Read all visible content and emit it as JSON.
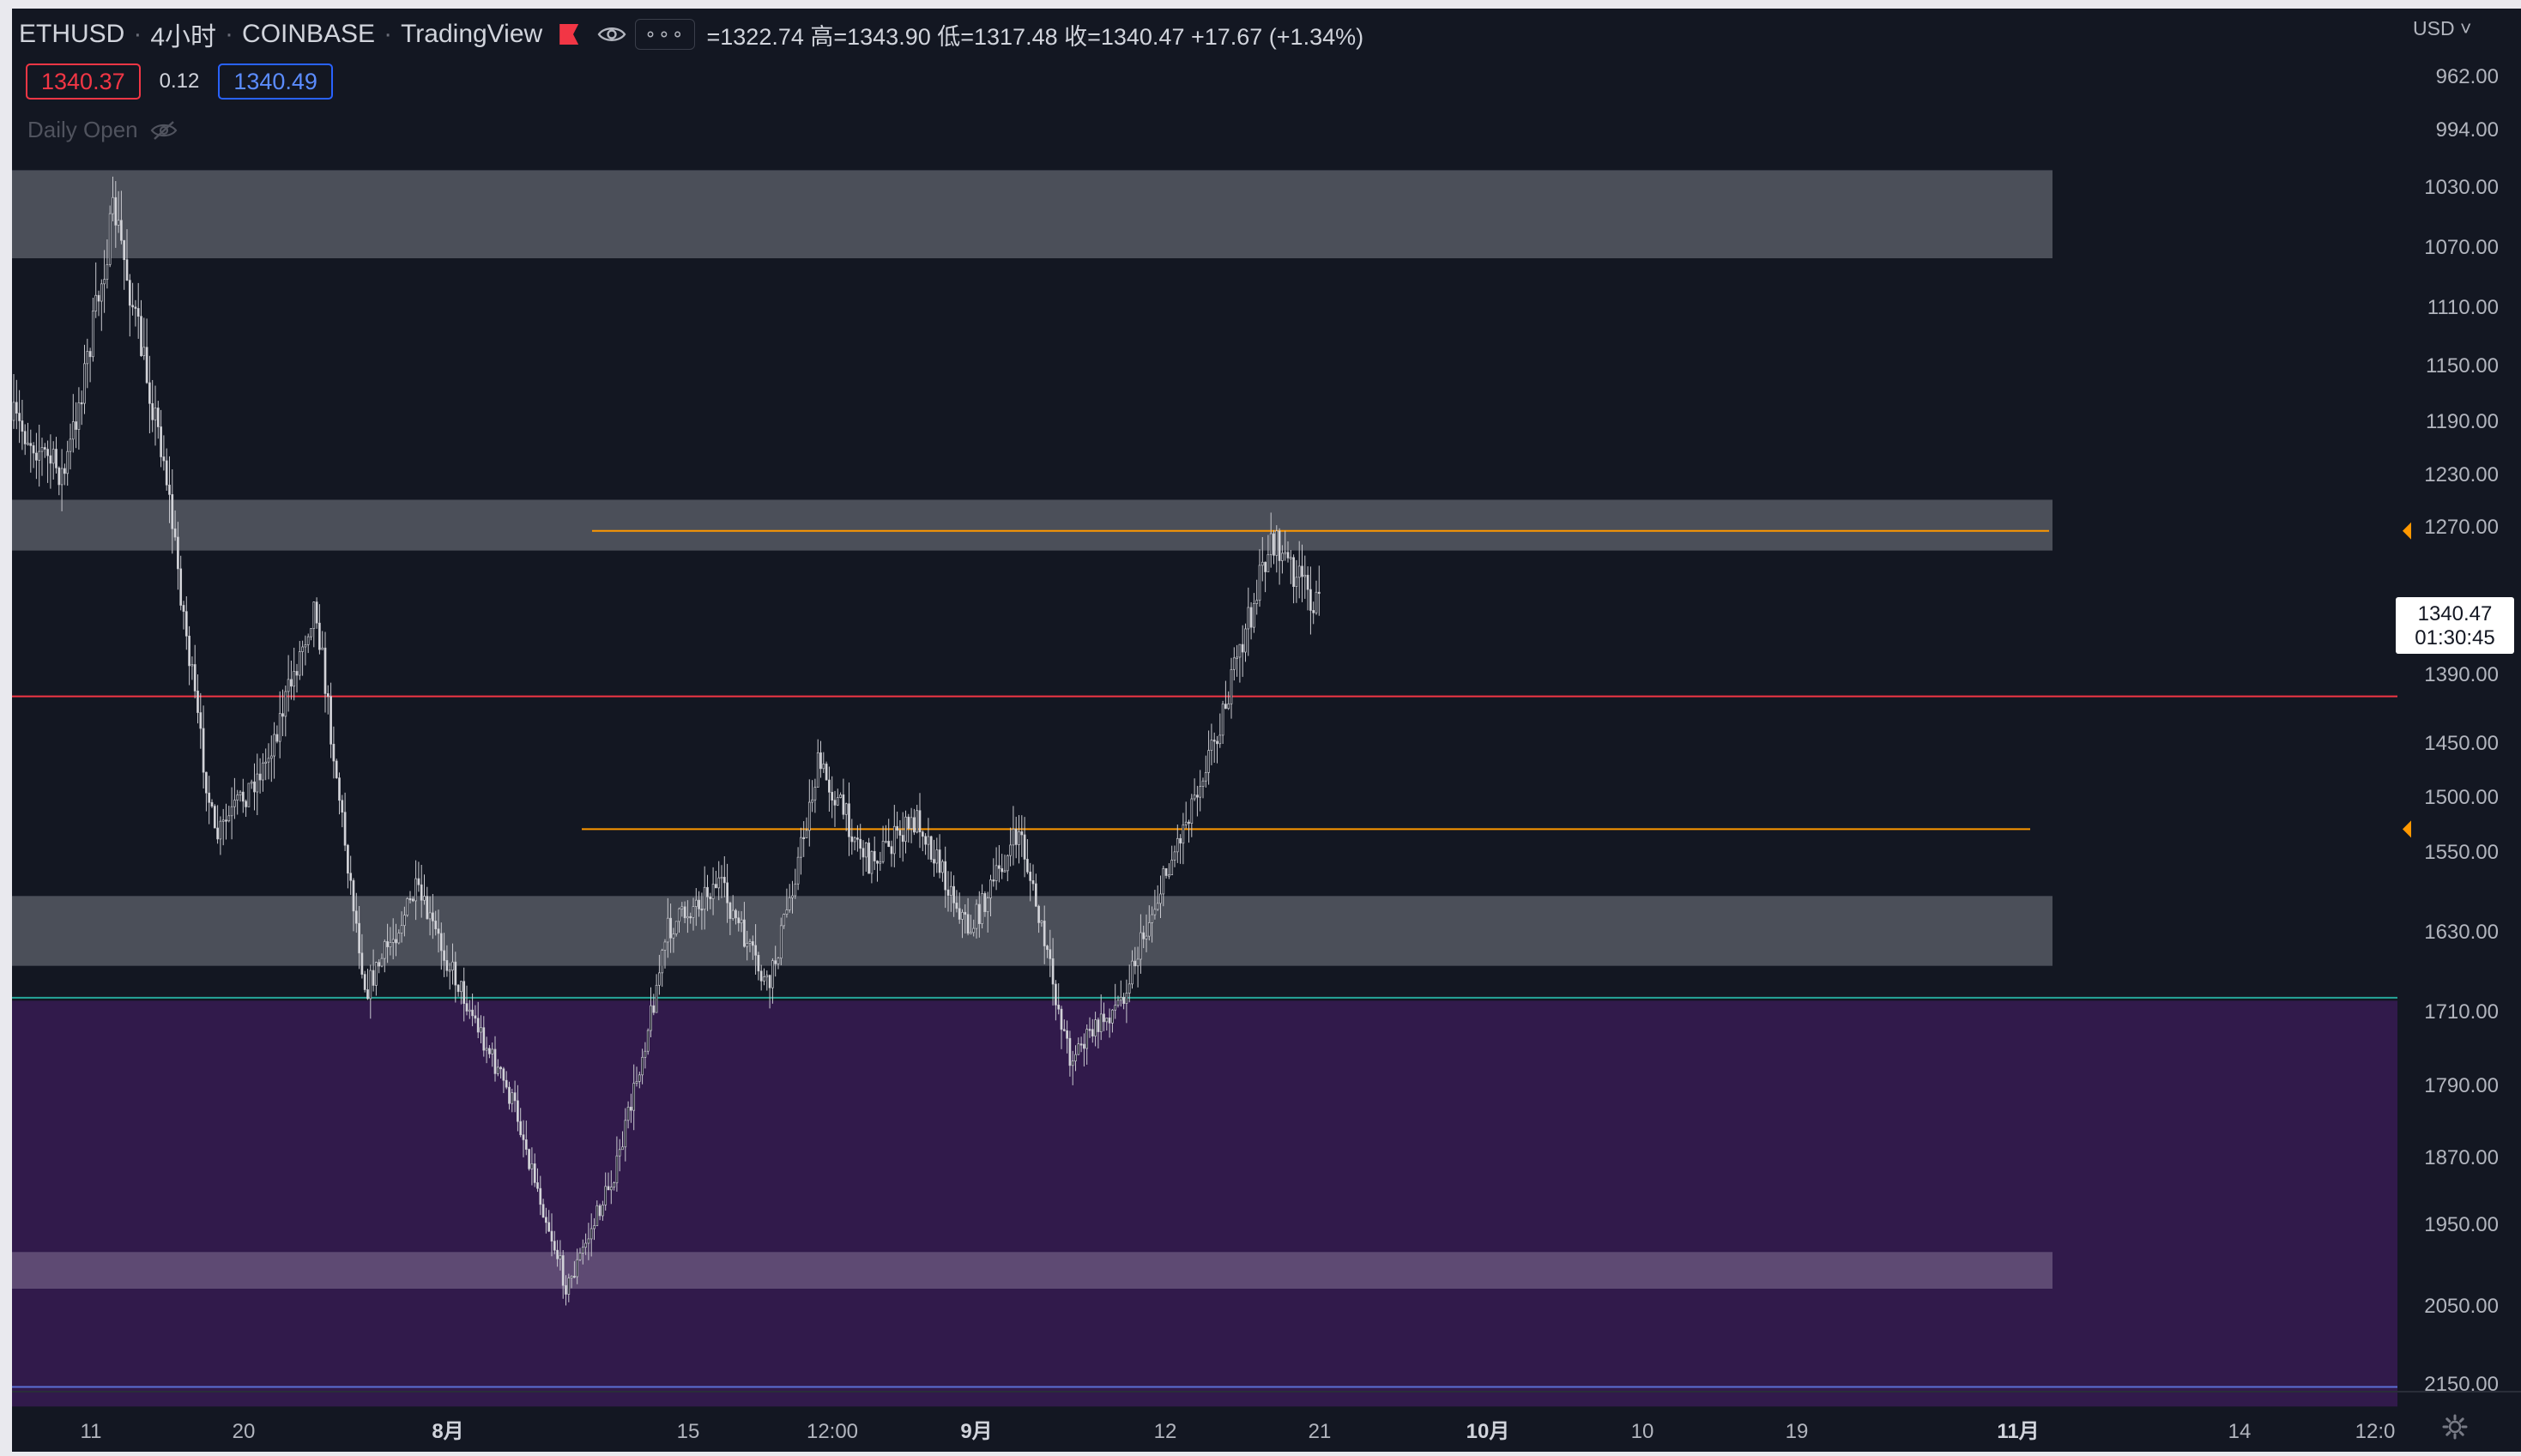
{
  "header": {
    "symbol": "ETHUSD",
    "interval": "4小时",
    "exchange": "COINBASE",
    "platform": "TradingView",
    "ohlc_text": "=1322.74 高=1343.90 低=1317.48 收=1340.47 +17.67 (+1.34%)",
    "bid": "1340.37",
    "spread": "0.12",
    "ask": "1340.49",
    "study": "Daily Open",
    "more": "∘∘∘"
  },
  "price_axis": {
    "currency": "USD",
    "last_price": "1340.47",
    "countdown": "01:30:45",
    "ticks": [
      "962.00",
      "994.00",
      "1030.00",
      "1070.00",
      "1110.00",
      "1150.00",
      "1190.00",
      "1230.00",
      "1270.00",
      "1390.00",
      "1450.00",
      "1500.00",
      "1550.00",
      "1630.00",
      "1710.00",
      "1790.00",
      "1870.00",
      "1950.00",
      "2050.00",
      "2150.00"
    ]
  },
  "chart_data": {
    "type": "candlestick",
    "symbol": "ETHUSD",
    "interval": "4小时",
    "x_ticks": [
      "11",
      "20",
      "8月",
      "15",
      "12:00",
      "9月",
      "12",
      "21",
      "10月",
      "10",
      "19",
      "11月",
      "14",
      "12:0"
    ],
    "y_axis": {
      "scale": "inverted",
      "range": [
        940,
        2180
      ]
    },
    "last_price": 1340.47,
    "price_path": [
      {
        "x": "11",
        "price": 1190
      },
      {
        "x": "11",
        "price": 1232
      },
      {
        "x": "11",
        "price": 1045
      },
      {
        "x": "11",
        "price": 1220
      },
      {
        "x": "20",
        "price": 1540
      },
      {
        "x": "20",
        "price": 1470
      },
      {
        "x": "8月",
        "price": 1330
      },
      {
        "x": "8月",
        "price": 1690
      },
      {
        "x": "8月",
        "price": 1590
      },
      {
        "x": "8月",
        "price": 1700
      },
      {
        "x": "15",
        "price": 1820
      },
      {
        "x": "15",
        "price": 2030
      },
      {
        "x": "15",
        "price": 1880
      },
      {
        "x": "12:00",
        "price": 1630
      },
      {
        "x": "12:00",
        "price": 1580
      },
      {
        "x": "12:00",
        "price": 1690
      },
      {
        "x": "9月",
        "price": 1470
      },
      {
        "x": "9月",
        "price": 1560
      },
      {
        "x": "9月",
        "price": 1520
      },
      {
        "x": "9月",
        "price": 1630
      },
      {
        "x": "9月",
        "price": 1530
      },
      {
        "x": "12",
        "price": 1760
      },
      {
        "x": "12",
        "price": 1700
      },
      {
        "x": "12",
        "price": 1560
      },
      {
        "x": "12",
        "price": 1430
      },
      {
        "x": "21",
        "price": 1280
      },
      {
        "x": "21",
        "price": 1340
      }
    ],
    "zones": [
      {
        "from": 1020,
        "to": 1078,
        "color": "#4b4f59"
      },
      {
        "from": 1250,
        "to": 1290,
        "color": "#4b4f59"
      },
      {
        "from": 1595,
        "to": 1665,
        "color": "#4b4f59"
      },
      {
        "from": 1985,
        "to": 2030,
        "color": "#5e4a73"
      },
      {
        "from": 1700,
        "to": 2180,
        "color": "#311a4b"
      }
    ],
    "lines": [
      {
        "price": 1274,
        "color": "#ff9800"
      },
      {
        "price": 1410,
        "color": "#f23645"
      },
      {
        "price": 1530,
        "color": "#ff9800"
      },
      {
        "price": 1697,
        "color": "#26a69a"
      },
      {
        "price": 2155,
        "color": "#5b6fd6"
      }
    ]
  },
  "colors": {
    "background": "#131722",
    "candle_stroke": "#c8c9cf",
    "axis_text": "#b2b5be",
    "bid": "#f23645",
    "ask": "#2962ff"
  },
  "icons": [
    "flag-icon",
    "eye-icon",
    "more-icon",
    "eye-off-icon",
    "chevron-down-icon",
    "settings-icon"
  ]
}
